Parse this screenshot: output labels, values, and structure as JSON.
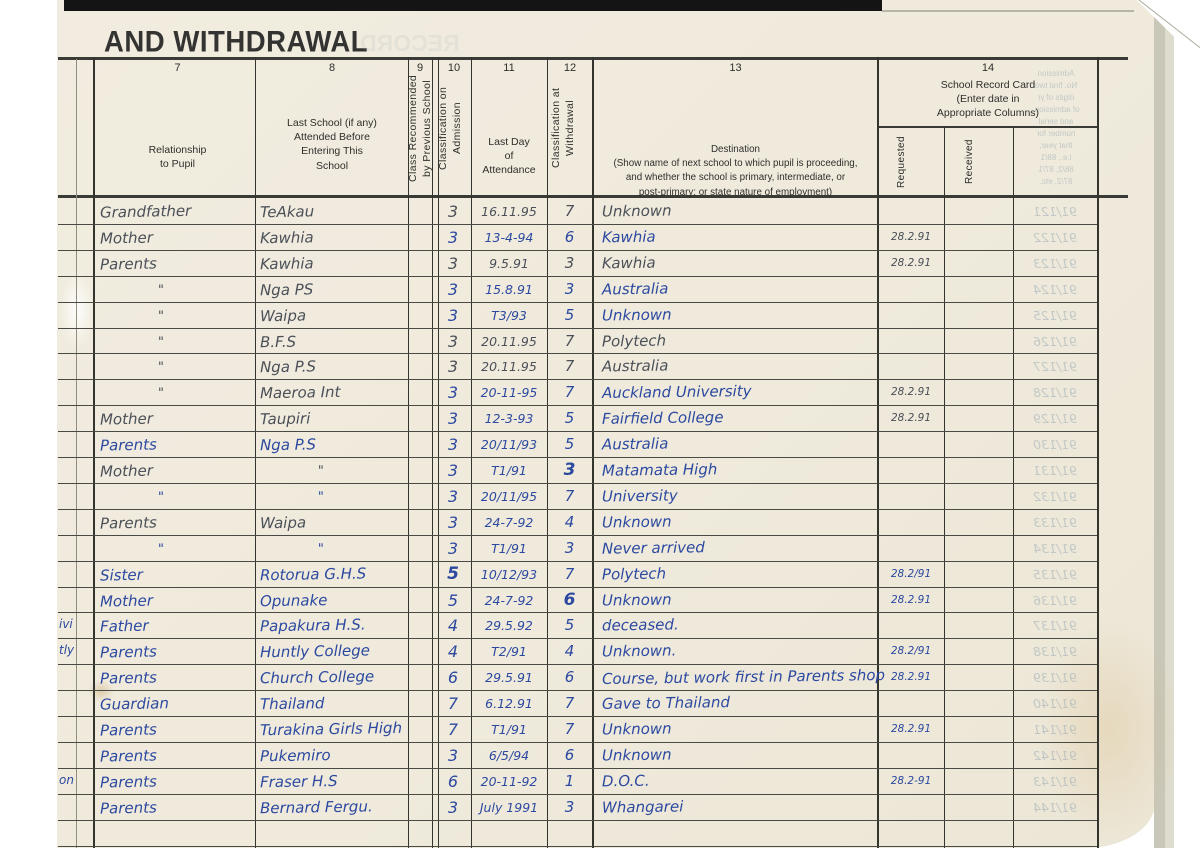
{
  "page_title": "AND WITHDRAWAL",
  "colors": {
    "pencil": "#4b5058",
    "pen": "#2c49a0",
    "page": "#f1ecdf"
  },
  "columns": {
    "c7": {
      "num": "7",
      "label": "Relationship\nto Pupil"
    },
    "c8": {
      "num": "8",
      "label": "Last School (if any)\nAttended Before\nEntering This\nSchool"
    },
    "c9": {
      "num": "9",
      "label": "Class Recommended\nby Previous School"
    },
    "c10": {
      "num": "10",
      "label": "Classification on\nAdmission"
    },
    "c11": {
      "num": "11",
      "label": "Last Day\nof\nAttendance"
    },
    "c12": {
      "num": "12",
      "label": "Classification at\nWithdrawal"
    },
    "c13": {
      "num": "13",
      "label": "Destination\n(Show name of next school to which pupil is proceeding,\nand whether the school is primary, intermediate, or\npost-primary; or state nature of employment)"
    },
    "c14": {
      "num": "14",
      "label": "School Record Card\n(Enter date in\nAppropriate Columns)",
      "sub_requested": "Requested",
      "sub_received": "Received"
    }
  },
  "rows": [
    {
      "rel": "Grandfather",
      "school": "TeAkau",
      "adm": "3",
      "date": "16.11.95",
      "wd": "7",
      "dest": "Unknown",
      "req": "",
      "inkL": "pencil",
      "inkR": "pencil",
      "inkQ": "pencil"
    },
    {
      "rel": "Mother",
      "school": "Kawhia",
      "adm": "3",
      "date": "13-4-94",
      "wd": "6",
      "dest": "Kawhia",
      "req": "28.2.91",
      "inkL": "pencil",
      "inkR": "pen",
      "inkQ": "pencil"
    },
    {
      "rel": "Parents",
      "school": "Kawhia",
      "adm": "3",
      "date": "9.5.91",
      "wd": "3",
      "dest": "Kawhia",
      "req": "28.2.91",
      "inkL": "pencil",
      "inkR": "pencil",
      "inkQ": "pencil"
    },
    {
      "rel": "\"",
      "school": "Nga PS",
      "adm": "3",
      "date": "15.8.91",
      "wd": "3",
      "dest": "Australia",
      "req": "",
      "inkL": "pencil",
      "inkR": "pen",
      "inkQ": "pen"
    },
    {
      "rel": "\"",
      "school": "Waipa",
      "adm": "3",
      "date": "T3/93",
      "wd": "5",
      "dest": "Unknown",
      "req": "",
      "inkL": "pencil",
      "inkR": "pen",
      "inkQ": "pen"
    },
    {
      "rel": "\"",
      "school": "B.F.S",
      "adm": "3",
      "date": "20.11.95",
      "wd": "7",
      "dest": "Polytech",
      "req": "",
      "inkL": "pencil",
      "inkR": "pencil",
      "inkQ": "pen"
    },
    {
      "rel": "\"",
      "school": "Nga P.S",
      "adm": "3",
      "date": "20.11.95",
      "wd": "7",
      "dest": "Australia",
      "req": "",
      "inkL": "pencil",
      "inkR": "pencil",
      "inkQ": "pen"
    },
    {
      "rel": "\"",
      "school": "Maeroa Int",
      "adm": "3",
      "date": "20-11-95",
      "wd": "7",
      "dest": "Auckland University",
      "req": "28.2.91",
      "inkL": "pencil",
      "inkR": "pen",
      "inkQ": "pencil"
    },
    {
      "rel": "Mother",
      "school": "Taupiri",
      "adm": "3",
      "date": "12-3-93",
      "wd": "5",
      "dest": "Fairfield College",
      "req": "28.2.91",
      "inkL": "pencil",
      "inkR": "pen",
      "inkQ": "pencil"
    },
    {
      "rel": "Parents",
      "school": "Nga P.S",
      "adm": "3",
      "date": "20/11/93",
      "wd": "5",
      "dest": "Australia",
      "req": "",
      "inkL": "pen",
      "inkR": "pen",
      "inkQ": "pen"
    },
    {
      "rel": "Mother",
      "school": "\"",
      "adm": "3",
      "date": "T1/91",
      "wd": "3",
      "dest": "Matamata High",
      "req": "",
      "inkL": "pencil",
      "inkR": "pen",
      "inkQ": "pen",
      "wdBold": true
    },
    {
      "rel": "\"",
      "school": "\"",
      "adm": "3",
      "date": "20/11/95",
      "wd": "7",
      "dest": "University",
      "req": "",
      "inkL": "pen",
      "inkR": "pen",
      "inkQ": "pen"
    },
    {
      "rel": "Parents",
      "school": "Waipa",
      "adm": "3",
      "date": "24-7-92",
      "wd": "4",
      "dest": "Unknown",
      "req": "",
      "inkL": "pencil",
      "inkR": "pen",
      "inkQ": "pen"
    },
    {
      "rel": "\"",
      "school": "\"",
      "adm": "3",
      "date": "T1/91",
      "wd": "3",
      "dest": "Never arrived",
      "req": "",
      "inkL": "pen",
      "inkR": "pen",
      "inkQ": "pen"
    },
    {
      "rel": "Sister",
      "school": "Rotorua G.H.S",
      "adm": "5",
      "date": "10/12/93",
      "wd": "7",
      "dest": "Polytech",
      "req": "28.2/91",
      "inkL": "pen",
      "inkR": "pen",
      "inkQ": "pen",
      "admBold": true
    },
    {
      "rel": "Mother",
      "school": "Opunake",
      "adm": "5",
      "date": "24-7-92",
      "wd": "6",
      "dest": "Unknown",
      "req": "28.2.91",
      "inkL": "pen",
      "inkR": "pen",
      "inkQ": "pen",
      "wdBold": true
    },
    {
      "rel": "Father",
      "school": "Papakura H.S.",
      "adm": "4",
      "date": "29.5.92",
      "wd": "5",
      "dest": "deceased.",
      "req": "",
      "inkL": "pen",
      "inkR": "pen",
      "inkQ": "pen"
    },
    {
      "rel": "Parents",
      "school": "Huntly College",
      "adm": "4",
      "date": "T2/91",
      "wd": "4",
      "dest": "Unknown.",
      "req": "28.2/91",
      "inkL": "pen",
      "inkR": "pen",
      "inkQ": "pen"
    },
    {
      "rel": "Parents",
      "school": "Church College",
      "adm": "6",
      "date": "29.5.91",
      "wd": "6",
      "dest": "Course, but work first in Parents shop",
      "req": "28.2.91",
      "inkL": "pen",
      "inkR": "pen",
      "inkQ": "pen"
    },
    {
      "rel": "Guardian",
      "school": "Thailand",
      "adm": "7",
      "date": "6.12.91",
      "wd": "7",
      "dest": "Gave to Thailand",
      "req": "",
      "inkL": "pen",
      "inkR": "pen",
      "inkQ": "pen"
    },
    {
      "rel": "Parents",
      "school": "Turakina Girls High",
      "adm": "7",
      "date": "T1/91",
      "wd": "7",
      "dest": "Unknown",
      "req": "28.2.91",
      "inkL": "pen",
      "inkR": "pen",
      "inkQ": "pen"
    },
    {
      "rel": "Parents",
      "school": "Pukemiro",
      "adm": "3",
      "date": "6/5/94",
      "wd": "6",
      "dest": "Unknown",
      "req": "",
      "inkL": "pen",
      "inkR": "pen",
      "inkQ": "pen"
    },
    {
      "rel": "Parents",
      "school": "Fraser H.S",
      "adm": "6",
      "date": "20-11-92",
      "wd": "1",
      "dest": "D.O.C.",
      "req": "28.2-91",
      "inkL": "pen",
      "inkR": "pen",
      "inkQ": "pen"
    },
    {
      "rel": "Parents",
      "school": "Bernard Fergu.",
      "adm": "3",
      "date": "July 1991",
      "wd": "3",
      "dest": "Whangarei",
      "req": "",
      "inkL": "pen",
      "inkR": "pen",
      "inkQ": "pen"
    }
  ],
  "margin_fragments": [
    {
      "row": 16,
      "text": "ivi"
    },
    {
      "row": 17,
      "text": "tly"
    },
    {
      "row": 22,
      "text": "on"
    }
  ],
  "bleedthrough": {
    "mirrored_title": "RECORD",
    "header_note": "Admission\nNo. first two\ndigits of yr\nof admission,\nand serial\nnumber for\nthat year,\ni.e., 88/1\n88/2, 87/1\n87/2, etc.",
    "admission_numbers": [
      "91/121",
      "91/122",
      "91/123",
      "91/124",
      "91/125",
      "91/126",
      "91/127",
      "91/128",
      "91/129",
      "91/130",
      "91/131",
      "91/132",
      "91/133",
      "91/134",
      "91/135",
      "91/136",
      "91/137",
      "91/138",
      "91/139",
      "91/140",
      "91/141",
      "91/142",
      "91/143",
      "91/144"
    ]
  }
}
